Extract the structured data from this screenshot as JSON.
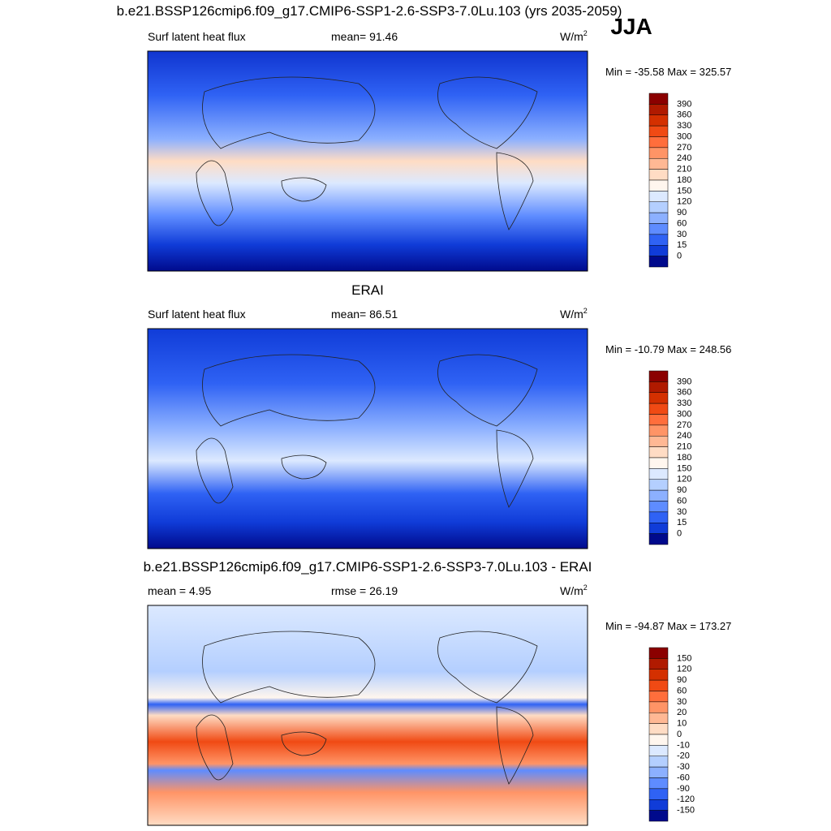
{
  "title": "b.e21.BSSP126cmip6.f09_g17.CMIP6-SSP1-2.6-SSP3-7.0Lu.103 (yrs 2035-2059)",
  "season": "JJA",
  "panels": [
    {
      "left": "Surf latent heat flux",
      "center": "mean=  91.46",
      "units": "W/m",
      "units_sup": "2",
      "minmax": "Min = -35.58 Max = 325.57",
      "colorbar": {
        "labels": [
          "390",
          "360",
          "330",
          "300",
          "270",
          "240",
          "210",
          "180",
          "150",
          "120",
          "90",
          "60",
          "30",
          "15",
          "0"
        ],
        "colors": [
          "#8b0000",
          "#b01a00",
          "#d43000",
          "#f04a14",
          "#ff6e3c",
          "#ff9466",
          "#ffb894",
          "#ffdcc4",
          "#fff6ee",
          "#dce9ff",
          "#b4cfff",
          "#8cb0ff",
          "#5e8cff",
          "#2f62f4",
          "#103cd8",
          "#000a8c"
        ]
      }
    },
    {
      "title": "ERAI",
      "left": "Surf latent heat flux",
      "center": "mean=  86.51",
      "units": "W/m",
      "units_sup": "2",
      "minmax": "Min = -10.79 Max = 248.56",
      "colorbar": {
        "labels": [
          "390",
          "360",
          "330",
          "300",
          "270",
          "240",
          "210",
          "180",
          "150",
          "120",
          "90",
          "60",
          "30",
          "15",
          "0"
        ],
        "colors": [
          "#8b0000",
          "#b01a00",
          "#d43000",
          "#f04a14",
          "#ff6e3c",
          "#ff9466",
          "#ffb894",
          "#ffdcc4",
          "#fff6ee",
          "#dce9ff",
          "#b4cfff",
          "#8cb0ff",
          "#5e8cff",
          "#2f62f4",
          "#103cd8",
          "#000a8c"
        ]
      }
    },
    {
      "title": "b.e21.BSSP126cmip6.f09_g17.CMIP6-SSP1-2.6-SSP3-7.0Lu.103 - ERAI",
      "left": "mean =   4.95",
      "center": "rmse =  26.19",
      "units": "W/m",
      "units_sup": "2",
      "minmax": "Min = -94.87 Max = 173.27",
      "colorbar": {
        "labels": [
          "150",
          "120",
          "90",
          "60",
          "30",
          "20",
          "10",
          "0",
          "-10",
          "-20",
          "-30",
          "-60",
          "-90",
          "-120",
          "-150"
        ],
        "colors": [
          "#8b0000",
          "#b01a00",
          "#d43000",
          "#f04a14",
          "#ff6e3c",
          "#ff9466",
          "#ffb894",
          "#ffdcc4",
          "#fff6ee",
          "#dce9ff",
          "#b4cfff",
          "#8cb0ff",
          "#5e8cff",
          "#2f62f4",
          "#103cd8",
          "#000a8c"
        ]
      }
    }
  ]
}
